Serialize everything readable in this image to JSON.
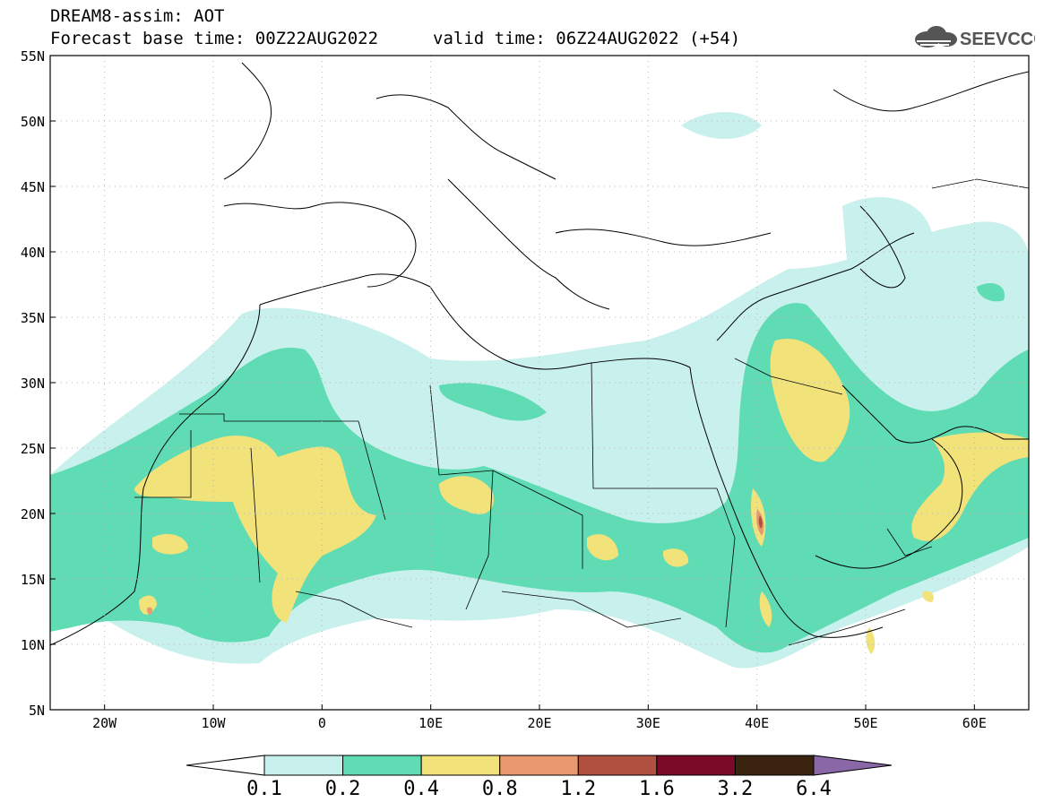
{
  "header": {
    "line1": "DREAM8-assim: AOT",
    "line2": "Forecast base time: 00Z22AUG2022",
    "valid": "valid time: 06Z24AUG2022 (+54)"
  },
  "logo": {
    "text": "SEEVCCC",
    "icon": "cloud-icon"
  },
  "map": {
    "lat_labels": [
      "55N",
      "50N",
      "45N",
      "40N",
      "35N",
      "30N",
      "25N",
      "20N",
      "15N",
      "10N",
      "5N"
    ],
    "lon_labels": [
      "20W",
      "10W",
      "0",
      "10E",
      "20E",
      "30E",
      "40E",
      "50E",
      "60E"
    ],
    "lat_range": [
      5,
      55
    ],
    "lon_range": [
      -25,
      65
    ],
    "grid": "dotted"
  },
  "colorbar": {
    "colors": [
      "#c8f0ec",
      "#5fdcb4",
      "#f2e27a",
      "#e89a6e",
      "#b05040",
      "#7a0a28",
      "#3a2410",
      "#8a68a8"
    ],
    "labels": [
      "0.1",
      "0.2",
      "0.4",
      "0.8",
      "1.2",
      "1.6",
      "3.2",
      "6.4"
    ]
  }
}
